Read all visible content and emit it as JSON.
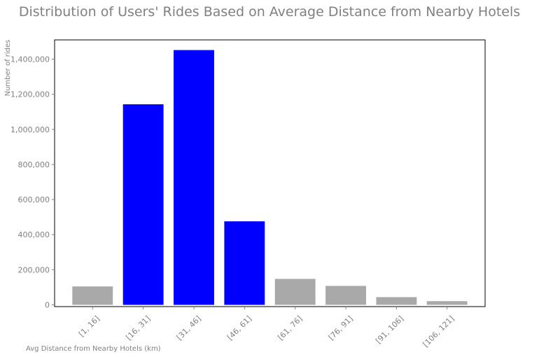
{
  "chart_data": {
    "type": "bar",
    "title": "Distribution of Users' Rides Based on Average Distance from Nearby Hotels",
    "xlabel": "Avg Distance from Nearby Hotels (km)",
    "ylabel": "Number of rides",
    "categories": [
      "[1, 16]",
      "[16, 31]",
      "[31, 46]",
      "[46, 61]",
      "[61, 76]",
      "[76, 91]",
      "[91, 106]",
      "[106, 121]"
    ],
    "values": [
      105000,
      1143000,
      1452000,
      476000,
      148000,
      108000,
      44000,
      21000
    ],
    "bar_colors": [
      "#a9a9a9",
      "#0000ff",
      "#0000ff",
      "#0000ff",
      "#a9a9a9",
      "#a9a9a9",
      "#a9a9a9",
      "#a9a9a9"
    ],
    "ylim": [
      -10000,
      1510000
    ],
    "yticks": [
      0,
      200000,
      400000,
      600000,
      800000,
      1000000,
      1200000,
      1400000
    ],
    "ytick_labels": [
      "0",
      "200,000",
      "400,000",
      "600,000",
      "800,000",
      "1,000,000",
      "1,200,000",
      "1,400,000"
    ],
    "grid": false,
    "legend": "none"
  }
}
